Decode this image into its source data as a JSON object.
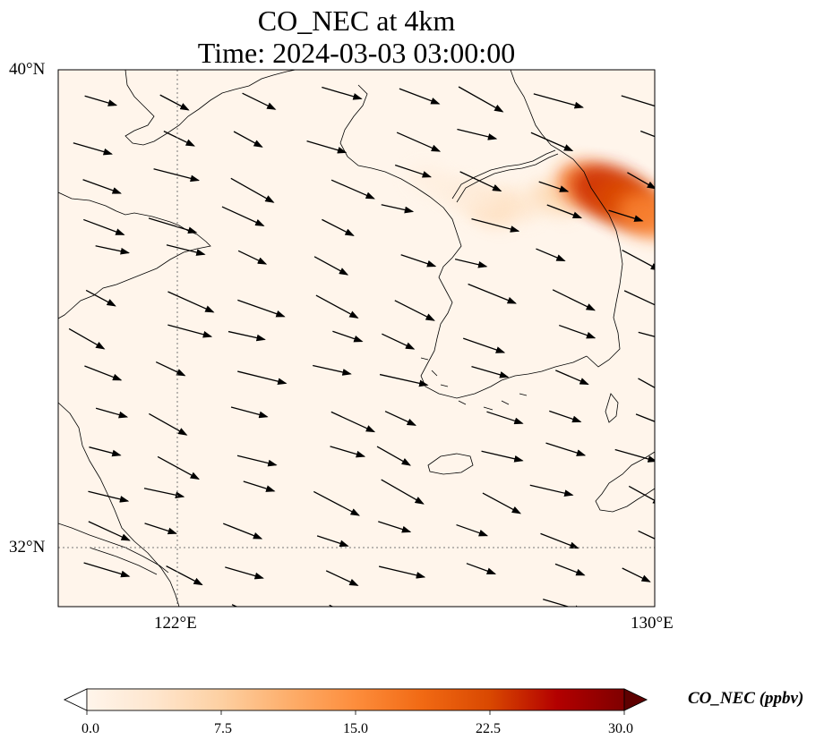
{
  "title": {
    "line1": "CO_NEC at 4km",
    "line2": "Time: 2024-03-03 03:00:00"
  },
  "map": {
    "lon_range": [
      118,
      130
    ],
    "lat_range": [
      30.8,
      40
    ],
    "gridlines": {
      "lon": [
        122
      ],
      "lat": [
        32
      ],
      "style": "dotted"
    },
    "lat_ticks": [
      "40°N",
      "32°N"
    ],
    "lon_ticks": [
      "122°E",
      "130°E"
    ],
    "field": "CO_NEC",
    "wind_vectors": "overlay (westerly to west-northwesterly flow)",
    "plume": [
      {
        "lon": 127.2,
        "lat": 37.7,
        "value": 4
      },
      {
        "lon": 126.7,
        "lat": 37.6,
        "value": 5
      },
      {
        "lon": 126.4,
        "lat": 37.8,
        "value": 3
      },
      {
        "lon": 126.0,
        "lat": 37.9,
        "value": 2
      },
      {
        "lon": 125.5,
        "lat": 38.1,
        "value": 1.5
      },
      {
        "lon": 128.0,
        "lat": 37.8,
        "value": 6
      },
      {
        "lon": 128.7,
        "lat": 38.0,
        "value": 18
      },
      {
        "lon": 129.1,
        "lat": 37.9,
        "value": 24
      },
      {
        "lon": 129.5,
        "lat": 37.7,
        "value": 22
      },
      {
        "lon": 129.9,
        "lat": 37.5,
        "value": 16
      }
    ]
  },
  "colorbar": {
    "label": "CO_NEC (ppbv)",
    "min": 0.0,
    "max": 30.0,
    "ticks": [
      "0.0",
      "7.5",
      "15.0",
      "22.5",
      "30.0"
    ],
    "tick_values": [
      0,
      7.5,
      15,
      22.5,
      30
    ],
    "colors": [
      "#fff5eb",
      "#fee6ce",
      "#fdd0a2",
      "#fdae6b",
      "#fd8d3c",
      "#f16913",
      "#d94801",
      "#b30000",
      "#7f0000"
    ],
    "extend": "both"
  }
}
